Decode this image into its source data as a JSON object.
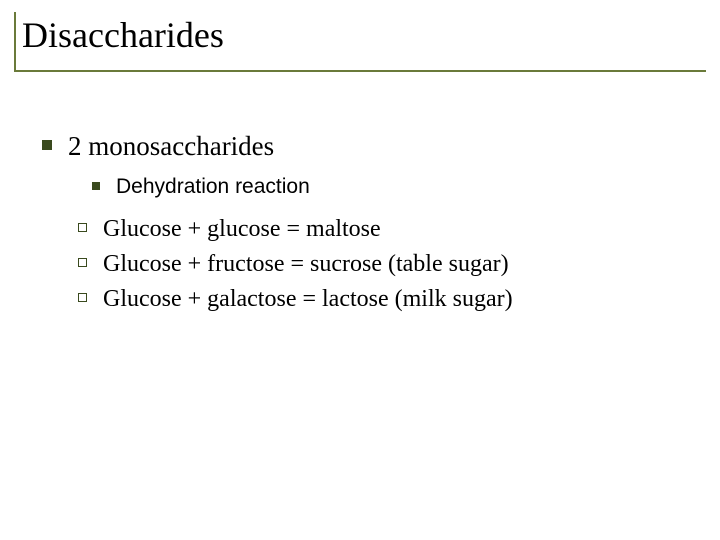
{
  "colors": {
    "title_border": "#6a7a3a",
    "bullet_solid": "#3a4a1e",
    "bullet_hollow_border": "#3a4a1e",
    "text": "#000000",
    "background": "#ffffff"
  },
  "title": "Disaccharides",
  "items": {
    "l1_0": "2 monosaccharides",
    "l2_0": "Dehydration reaction",
    "l3_0": "Glucose + glucose = maltose",
    "l3_1": "Glucose + fructose = sucrose (table sugar)",
    "l3_2": "Glucose + galactose = lactose (milk sugar)"
  }
}
